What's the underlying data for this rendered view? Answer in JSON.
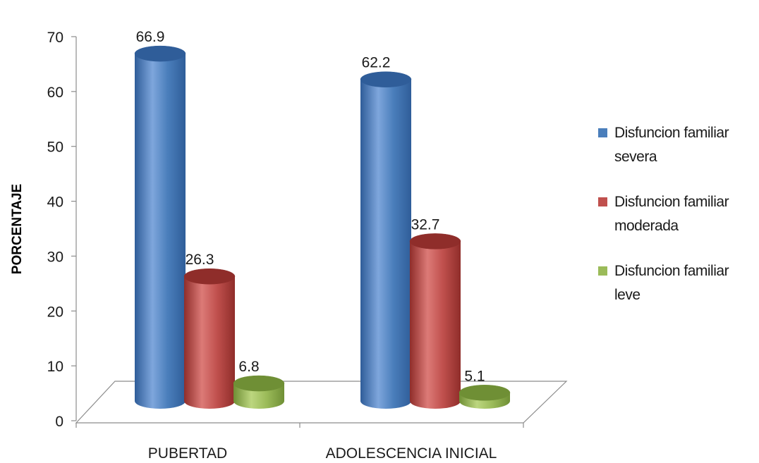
{
  "chart_data": {
    "type": "bar",
    "ylabel": "PORCENTAJE",
    "xlabel": "",
    "ylim": [
      0,
      70
    ],
    "yticks": [
      0,
      10,
      20,
      30,
      40,
      50,
      60,
      70
    ],
    "categories": [
      "PUBERTAD",
      "ADOLESCENCIA INICIAL"
    ],
    "series": [
      {
        "name": "Disfuncion familiar severa",
        "values": [
          66.9,
          62.2
        ],
        "color": "#4a7ebb",
        "dark": "#2f5d99",
        "light": "#7ea6dc"
      },
      {
        "name": "Disfuncion familiar moderada",
        "values": [
          26.3,
          32.7
        ],
        "color": "#c0504d",
        "dark": "#8f2d2a",
        "light": "#dc7a77"
      },
      {
        "name": "Disfuncion familiar leve",
        "values": [
          6.8,
          5.1
        ],
        "color": "#9bbb59",
        "dark": "#6f8f35",
        "light": "#bcd67f"
      }
    ],
    "legend_position": "right",
    "grid": false,
    "style": "3d-cylinder"
  }
}
